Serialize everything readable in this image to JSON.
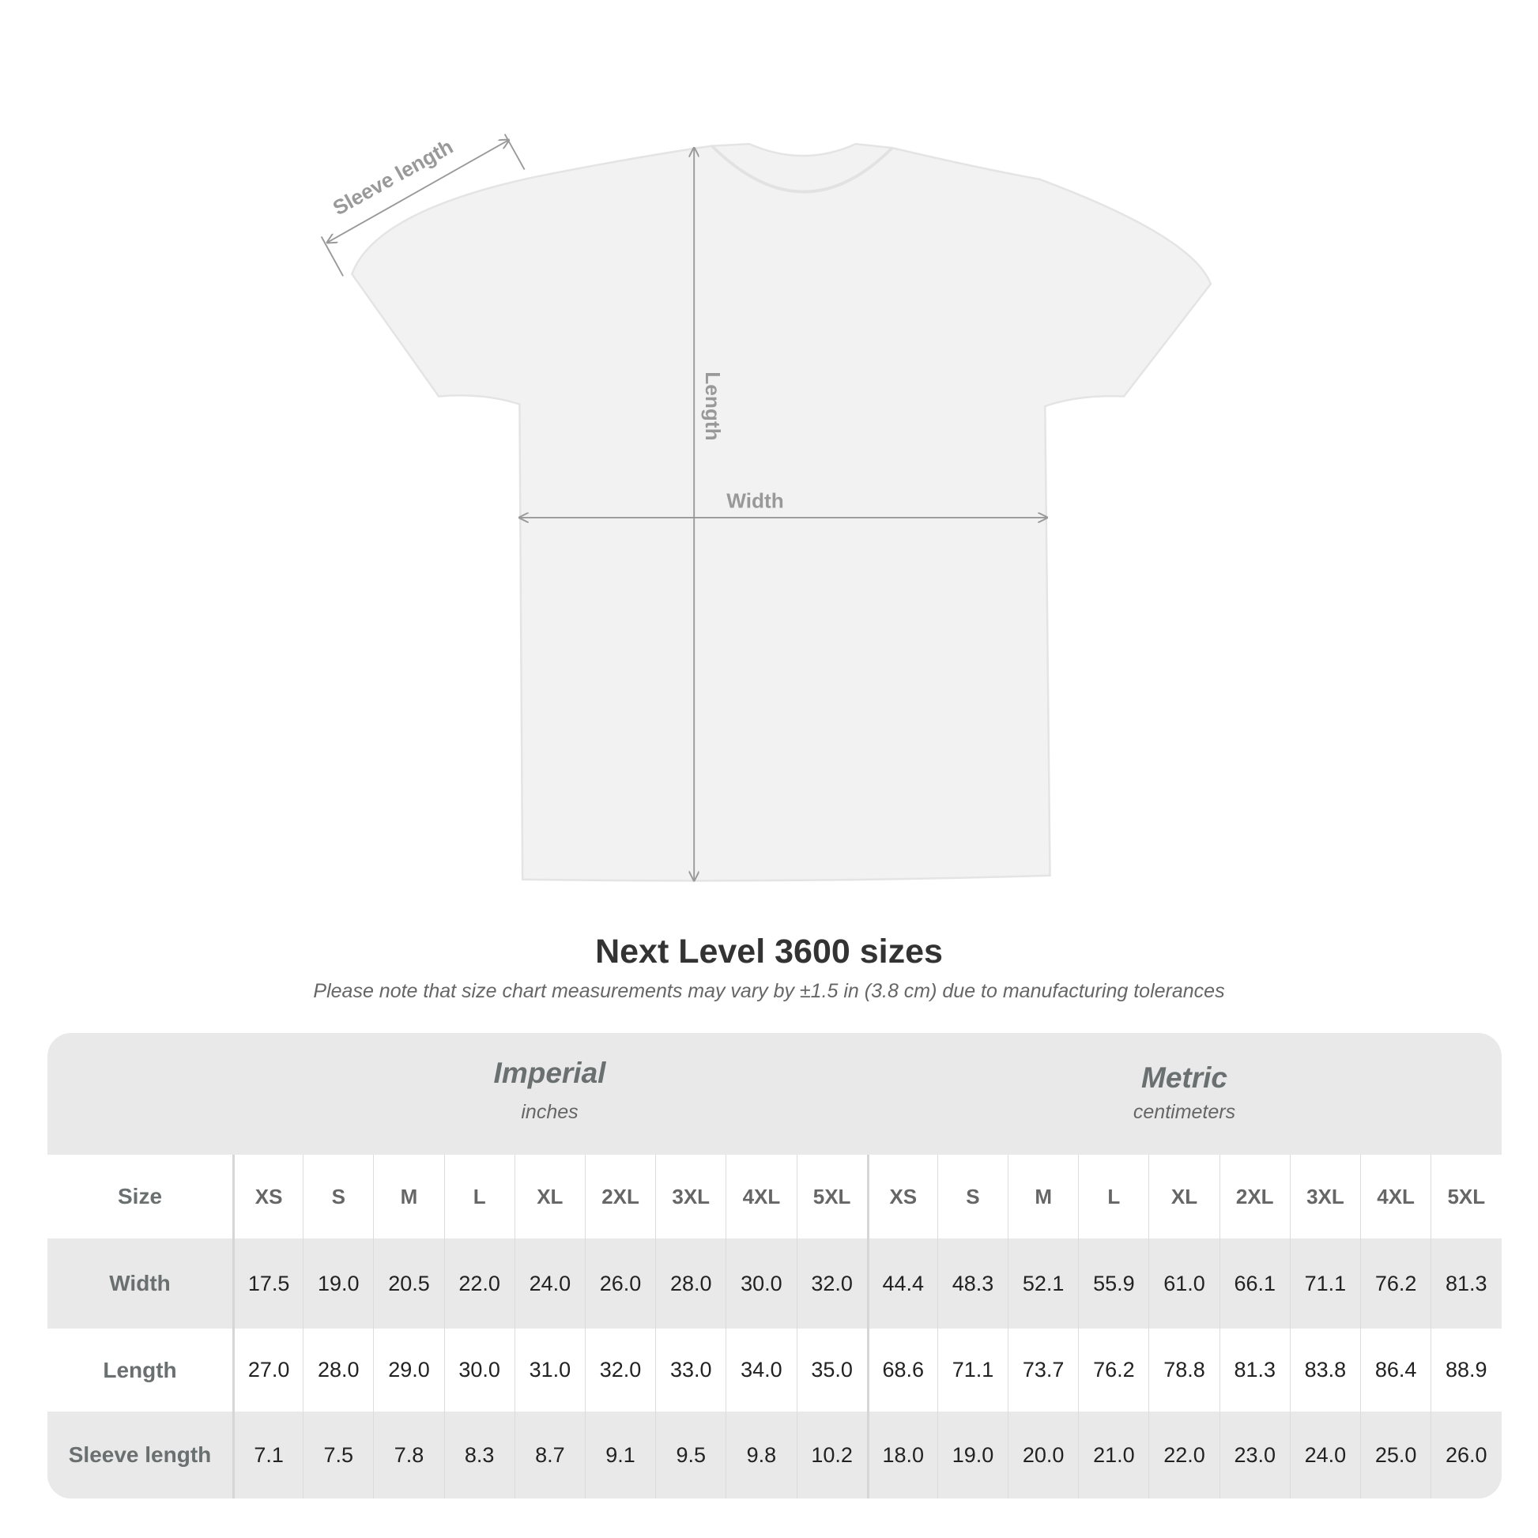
{
  "diagram": {
    "sleeve_label": "Sleeve length",
    "length_label": "Length",
    "width_label": "Width"
  },
  "title": "Next Level 3600 sizes",
  "note": "Please note that size chart measurements may vary by ±1.5 in (3.8 cm) due to manufacturing tolerances",
  "table": {
    "imperial": {
      "label": "Imperial",
      "unit": "inches"
    },
    "metric": {
      "label": "Metric",
      "unit": "centimeters"
    },
    "size_label": "Size",
    "sizes": [
      "XS",
      "S",
      "M",
      "L",
      "XL",
      "2XL",
      "3XL",
      "4XL",
      "5XL"
    ],
    "rows": [
      {
        "label": "Width",
        "imperial": [
          "17.5",
          "19.0",
          "20.5",
          "22.0",
          "24.0",
          "26.0",
          "28.0",
          "30.0",
          "32.0"
        ],
        "metric": [
          "44.4",
          "48.3",
          "52.1",
          "55.9",
          "61.0",
          "66.1",
          "71.1",
          "76.2",
          "81.3"
        ]
      },
      {
        "label": "Length",
        "imperial": [
          "27.0",
          "28.0",
          "29.0",
          "30.0",
          "31.0",
          "32.0",
          "33.0",
          "34.0",
          "35.0"
        ],
        "metric": [
          "68.6",
          "71.1",
          "73.7",
          "76.2",
          "78.8",
          "81.3",
          "83.8",
          "86.4",
          "88.9"
        ]
      },
      {
        "label": "Sleeve length",
        "imperial": [
          "7.1",
          "7.5",
          "7.8",
          "8.3",
          "8.7",
          "9.1",
          "9.5",
          "9.8",
          "10.2"
        ],
        "metric": [
          "18.0",
          "19.0",
          "20.0",
          "21.0",
          "22.0",
          "23.0",
          "24.0",
          "25.0",
          "26.0"
        ]
      }
    ]
  }
}
